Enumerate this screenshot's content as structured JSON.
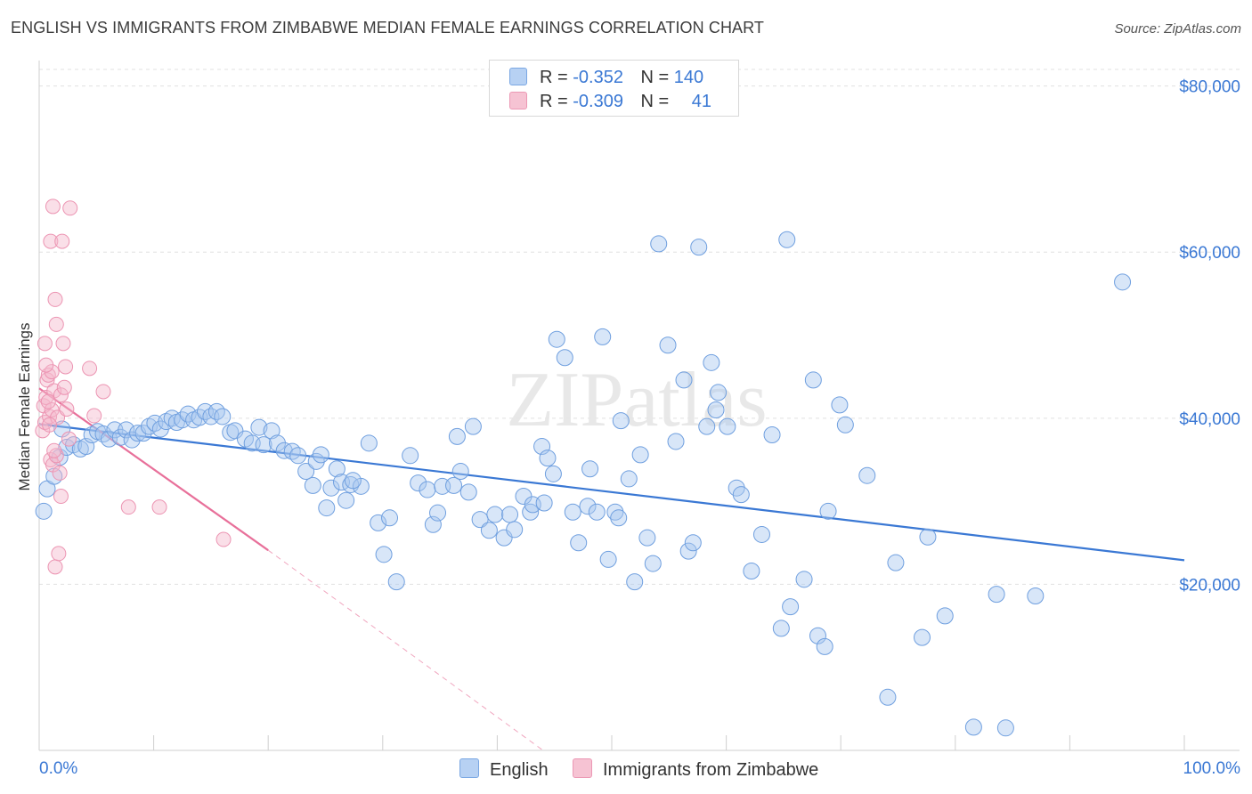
{
  "title": "ENGLISH VS IMMIGRANTS FROM ZIMBABWE MEDIAN FEMALE EARNINGS CORRELATION CHART",
  "source": "Source: ZipAtlas.com",
  "watermark": "ZIPatlas",
  "legend_top": [
    {
      "r_label": "R =",
      "r_value": "-0.352",
      "n_label": "N =",
      "n_value": "140"
    },
    {
      "r_label": "R =",
      "r_value": "-0.309",
      "n_label": "N =",
      "n_value": "41"
    }
  ],
  "legend_bottom": [
    "English",
    "Immigrants from Zimbabwe"
  ],
  "colors": {
    "blue": "#3a78d4",
    "blue_fill": "#a9c8f0",
    "pink": "#e8709a",
    "pink_fill": "#f4b7cb",
    "grid": "#e0e0e0"
  },
  "chart_data": {
    "type": "scatter",
    "xlabel": "",
    "ylabel": "Median Female Earnings",
    "xlim": [
      0,
      100
    ],
    "ylim": [
      0,
      82000
    ],
    "x_tick_labels": [
      "0.0%",
      "100.0%"
    ],
    "y_ticks": [
      20000,
      40000,
      60000,
      80000
    ],
    "y_tick_labels": [
      "$20,000",
      "$40,000",
      "$60,000",
      "$80,000"
    ],
    "grid": "horizontal dashed",
    "legend_position": "top-center and bottom",
    "series": [
      {
        "name": "English",
        "r": -0.352,
        "n": 140,
        "trend": {
          "x": [
            0,
            100
          ],
          "y": [
            39300,
            22900
          ]
        },
        "points": [
          [
            0.4,
            28800
          ],
          [
            0.7,
            31500
          ],
          [
            1.3,
            33000
          ],
          [
            1.8,
            35300
          ],
          [
            2.0,
            38700
          ],
          [
            2.4,
            36500
          ],
          [
            3.0,
            36800
          ],
          [
            3.6,
            36300
          ],
          [
            4.1,
            36600
          ],
          [
            4.6,
            38000
          ],
          [
            5.1,
            38400
          ],
          [
            5.6,
            38100
          ],
          [
            6.1,
            37500
          ],
          [
            6.6,
            38600
          ],
          [
            7.1,
            37700
          ],
          [
            7.6,
            38600
          ],
          [
            8.1,
            37400
          ],
          [
            8.6,
            38200
          ],
          [
            9.1,
            38200
          ],
          [
            9.6,
            39000
          ],
          [
            10.1,
            39400
          ],
          [
            10.6,
            38700
          ],
          [
            11.1,
            39600
          ],
          [
            11.6,
            40000
          ],
          [
            12.0,
            39500
          ],
          [
            12.5,
            39800
          ],
          [
            13.0,
            40500
          ],
          [
            13.5,
            39800
          ],
          [
            14.0,
            40100
          ],
          [
            14.5,
            40800
          ],
          [
            15.0,
            40200
          ],
          [
            15.5,
            40800
          ],
          [
            16.0,
            40200
          ],
          [
            16.7,
            38300
          ],
          [
            17.1,
            38500
          ],
          [
            18.0,
            37500
          ],
          [
            18.6,
            37000
          ],
          [
            19.2,
            38900
          ],
          [
            19.6,
            36800
          ],
          [
            20.3,
            38500
          ],
          [
            20.8,
            37000
          ],
          [
            21.4,
            36100
          ],
          [
            22.1,
            36000
          ],
          [
            22.6,
            35500
          ],
          [
            23.3,
            33600
          ],
          [
            23.9,
            31900
          ],
          [
            24.2,
            34800
          ],
          [
            24.6,
            35600
          ],
          [
            25.1,
            29200
          ],
          [
            25.5,
            31600
          ],
          [
            26.0,
            33900
          ],
          [
            26.4,
            32300
          ],
          [
            26.8,
            30100
          ],
          [
            27.2,
            32000
          ],
          [
            28.1,
            31800
          ],
          [
            28.8,
            37000
          ],
          [
            29.6,
            27400
          ],
          [
            30.1,
            23600
          ],
          [
            30.6,
            28000
          ],
          [
            31.2,
            20300
          ],
          [
            32.4,
            35500
          ],
          [
            33.1,
            32200
          ],
          [
            33.9,
            31400
          ],
          [
            34.4,
            27200
          ],
          [
            34.8,
            28600
          ],
          [
            35.2,
            31800
          ],
          [
            36.5,
            37800
          ],
          [
            36.8,
            33600
          ],
          [
            37.5,
            31100
          ],
          [
            37.9,
            39000
          ],
          [
            38.5,
            27800
          ],
          [
            39.3,
            26500
          ],
          [
            39.8,
            28400
          ],
          [
            40.6,
            25600
          ],
          [
            41.1,
            28400
          ],
          [
            41.5,
            26600
          ],
          [
            42.3,
            30600
          ],
          [
            42.9,
            28700
          ],
          [
            43.1,
            29600
          ],
          [
            43.9,
            36600
          ],
          [
            44.4,
            35200
          ],
          [
            44.9,
            33300
          ],
          [
            45.2,
            49500
          ],
          [
            45.9,
            47300
          ],
          [
            46.6,
            28700
          ],
          [
            47.1,
            25000
          ],
          [
            47.9,
            29400
          ],
          [
            48.1,
            33900
          ],
          [
            48.7,
            28700
          ],
          [
            49.2,
            49800
          ],
          [
            49.7,
            23000
          ],
          [
            50.3,
            28700
          ],
          [
            50.8,
            39700
          ],
          [
            51.5,
            32700
          ],
          [
            52.0,
            20300
          ],
          [
            52.5,
            35600
          ],
          [
            53.1,
            25600
          ],
          [
            53.6,
            22500
          ],
          [
            54.1,
            61000
          ],
          [
            54.9,
            48800
          ],
          [
            55.6,
            37200
          ],
          [
            56.3,
            44600
          ],
          [
            56.7,
            24000
          ],
          [
            57.1,
            25000
          ],
          [
            57.6,
            60600
          ],
          [
            58.3,
            39000
          ],
          [
            58.7,
            46700
          ],
          [
            59.3,
            43100
          ],
          [
            60.1,
            39000
          ],
          [
            60.9,
            31600
          ],
          [
            61.3,
            30800
          ],
          [
            62.2,
            21600
          ],
          [
            63.1,
            26000
          ],
          [
            64.0,
            38000
          ],
          [
            64.8,
            14700
          ],
          [
            65.3,
            61500
          ],
          [
            65.6,
            17300
          ],
          [
            66.8,
            20600
          ],
          [
            67.6,
            44600
          ],
          [
            68.0,
            13800
          ],
          [
            68.6,
            12500
          ],
          [
            68.9,
            28800
          ],
          [
            69.9,
            41600
          ],
          [
            70.4,
            39200
          ],
          [
            72.3,
            33100
          ],
          [
            74.1,
            6400
          ],
          [
            74.8,
            22600
          ],
          [
            77.1,
            13600
          ],
          [
            77.6,
            25700
          ],
          [
            79.1,
            16200
          ],
          [
            81.6,
            2800
          ],
          [
            83.6,
            18800
          ],
          [
            84.4,
            2700
          ],
          [
            87.0,
            18600
          ],
          [
            94.6,
            56400
          ],
          [
            50.6,
            28000
          ],
          [
            36.2,
            31900
          ],
          [
            27.4,
            32500
          ],
          [
            44.1,
            29800
          ],
          [
            59.1,
            41000
          ]
        ]
      },
      {
        "name": "Immigrants from Zimbabwe",
        "r": -0.309,
        "n": 41,
        "trend": {
          "x": [
            0,
            20
          ],
          "y": [
            43600,
            24100
          ]
        },
        "trend_extension": {
          "x": [
            20,
            44
          ],
          "y": [
            24100,
            0
          ]
        },
        "points": [
          [
            0.3,
            38500
          ],
          [
            0.4,
            41500
          ],
          [
            0.5,
            39500
          ],
          [
            0.6,
            42500
          ],
          [
            0.7,
            44600
          ],
          [
            0.8,
            45200
          ],
          [
            0.9,
            40200
          ],
          [
            1.0,
            35000
          ],
          [
            1.1,
            41000
          ],
          [
            1.2,
            34400
          ],
          [
            1.3,
            43300
          ],
          [
            1.4,
            22100
          ],
          [
            1.5,
            35500
          ],
          [
            1.6,
            40100
          ],
          [
            1.2,
            65500
          ],
          [
            1.0,
            61300
          ],
          [
            1.4,
            54300
          ],
          [
            1.5,
            51300
          ],
          [
            1.7,
            23700
          ],
          [
            1.8,
            33400
          ],
          [
            1.9,
            30600
          ],
          [
            2.0,
            61300
          ],
          [
            2.1,
            49000
          ],
          [
            2.3,
            46200
          ],
          [
            2.4,
            41100
          ],
          [
            2.6,
            37500
          ],
          [
            2.7,
            65300
          ],
          [
            0.5,
            49000
          ],
          [
            0.8,
            42000
          ],
          [
            1.1,
            45600
          ],
          [
            1.9,
            42800
          ],
          [
            2.2,
            43700
          ],
          [
            0.6,
            46400
          ],
          [
            1.3,
            36100
          ],
          [
            4.4,
            46000
          ],
          [
            4.8,
            40300
          ],
          [
            5.6,
            43200
          ],
          [
            7.8,
            29300
          ],
          [
            10.5,
            29300
          ],
          [
            16.1,
            25400
          ],
          [
            0.9,
            39200
          ]
        ]
      }
    ]
  }
}
